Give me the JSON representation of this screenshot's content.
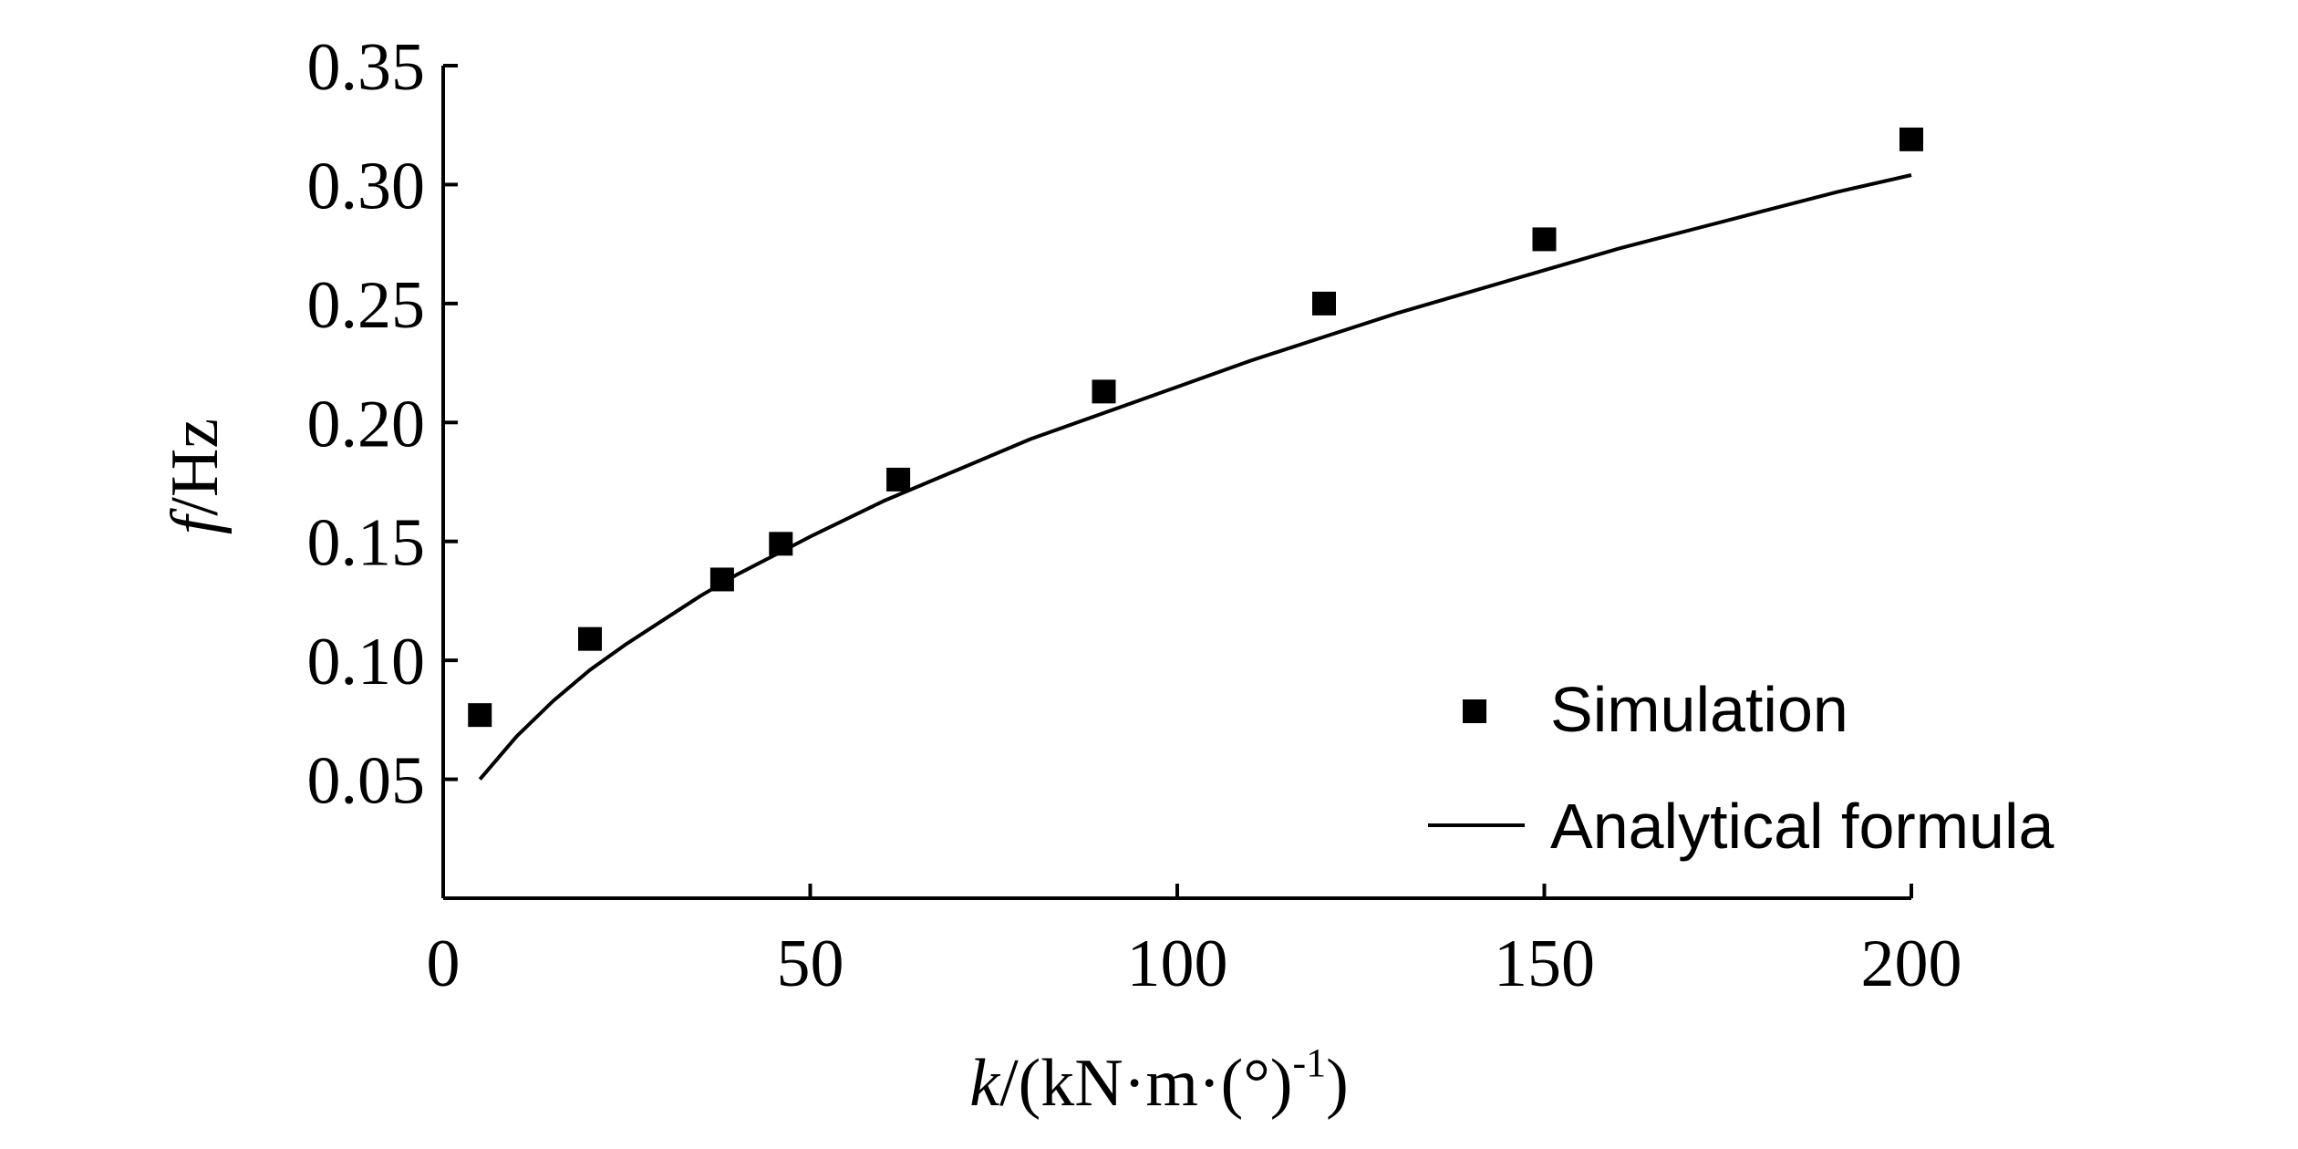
{
  "chart_data": {
    "type": "scatter",
    "xlabel": "k/(kN·m·(°)-1)",
    "xlabel_parts": {
      "var": "k",
      "unit_open": "/(kN·m·(°)",
      "exponent": "-1",
      "unit_close": ")"
    },
    "ylabel": "f/Hz",
    "ylabel_parts": {
      "var": "f",
      "unit": "/Hz"
    },
    "xlim": [
      0,
      200
    ],
    "ylim": [
      0,
      0.35
    ],
    "x_ticks": [
      0,
      50,
      100,
      150,
      200
    ],
    "x_tick_labels": [
      "0",
      "50",
      "100",
      "150",
      "200"
    ],
    "y_ticks": [
      0.05,
      0.1,
      0.15,
      0.2,
      0.25,
      0.3,
      0.35
    ],
    "y_tick_labels": [
      "0.05",
      "0.10",
      "0.15",
      "0.20",
      "0.25",
      "0.30",
      "0.35"
    ],
    "grid": false,
    "legend_position": "bottom-right",
    "series": [
      {
        "name": "Simulation",
        "kind": "scatter",
        "marker": "square",
        "color": "#000000",
        "x": [
          5,
          20,
          38,
          46,
          62,
          90,
          120,
          150,
          200
        ],
        "y": [
          0.077,
          0.109,
          0.134,
          0.149,
          0.176,
          0.213,
          0.25,
          0.277,
          0.319
        ]
      },
      {
        "name": "Analytical formula",
        "kind": "line",
        "color": "#000000",
        "x": [
          5,
          10,
          15,
          20,
          25,
          30,
          35,
          40,
          45,
          50,
          60,
          70,
          80,
          90,
          100,
          110,
          120,
          130,
          140,
          150,
          160,
          170,
          180,
          190,
          200
        ],
        "y": [
          0.05,
          0.068,
          0.083,
          0.096,
          0.107,
          0.117,
          0.127,
          0.136,
          0.144,
          0.152,
          0.167,
          0.18,
          0.193,
          0.204,
          0.215,
          0.226,
          0.236,
          0.246,
          0.255,
          0.264,
          0.273,
          0.281,
          0.289,
          0.297,
          0.304
        ]
      }
    ]
  }
}
